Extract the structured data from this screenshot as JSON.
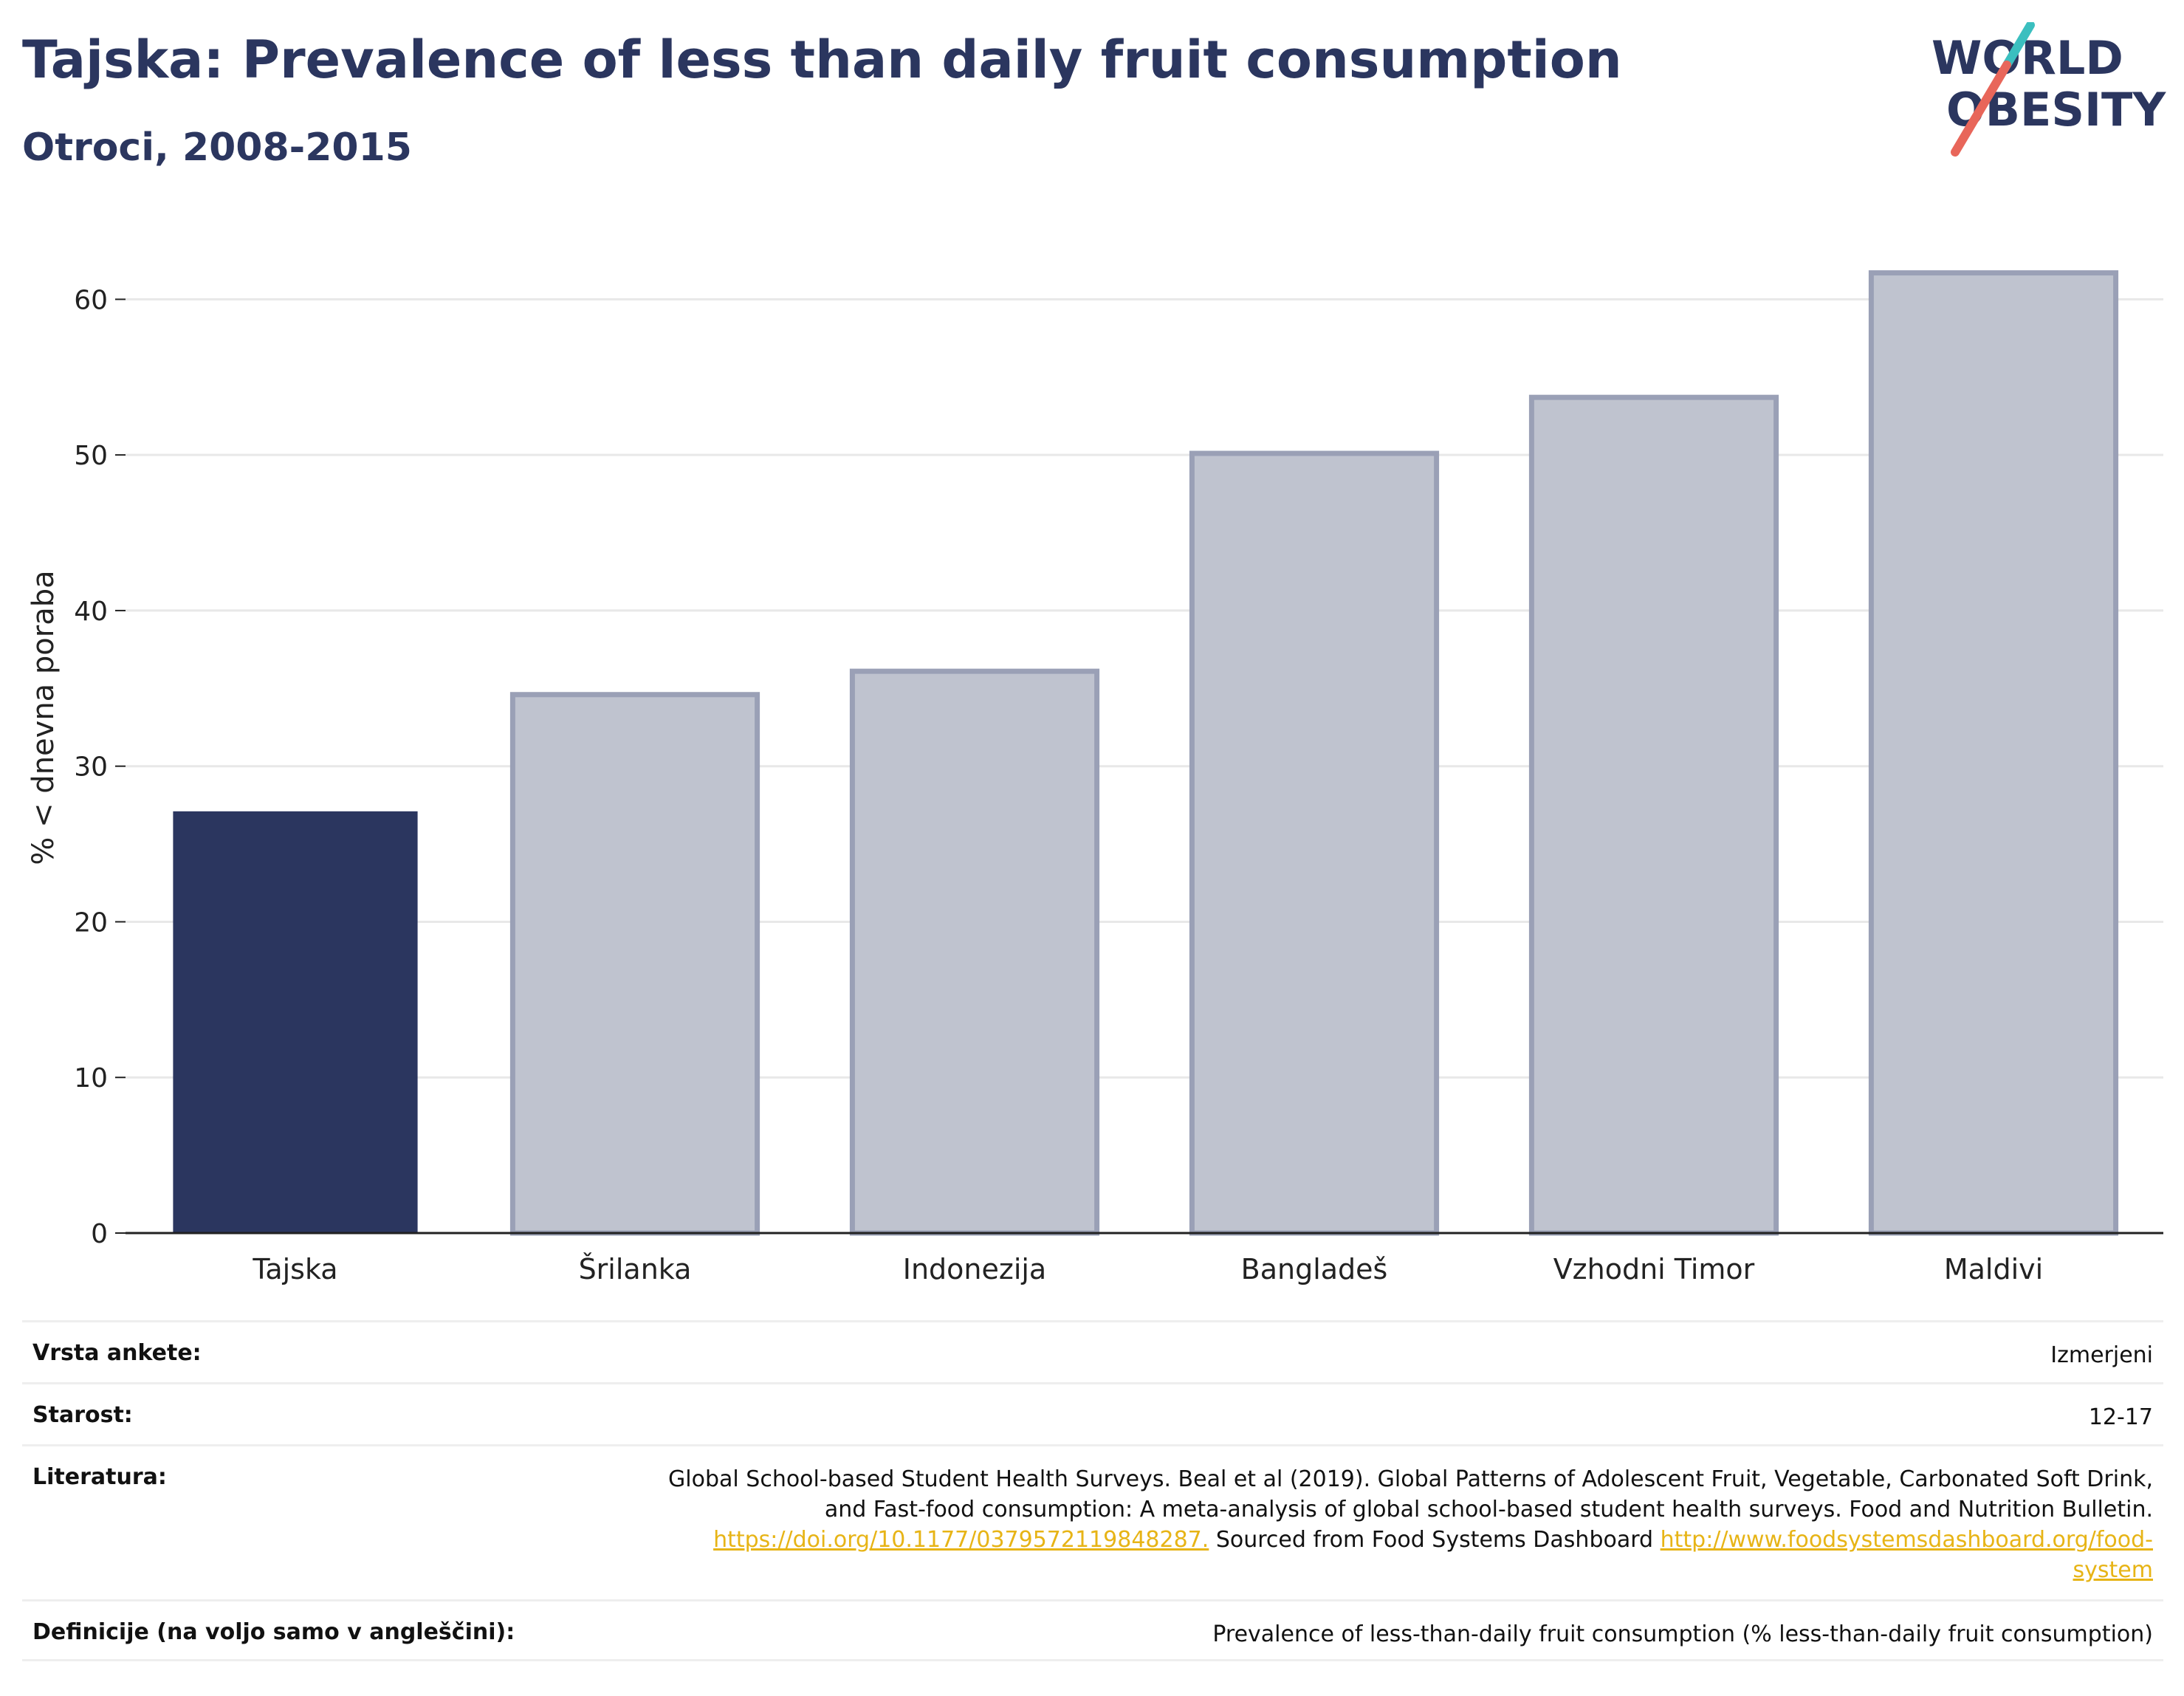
{
  "title": "Tajska: Prevalence of less than daily fruit consumption",
  "subtitle": "Otroci, 2008-2015",
  "logo": {
    "line1": "WORLD",
    "line2": "OBESITY",
    "accent_teal": "#3bbfbf",
    "accent_red": "#e8665a"
  },
  "colors": {
    "highlight": "#2b365f",
    "other_fill": "#bfc3cf",
    "other_stroke": "#9aa0b6"
  },
  "chart_data": {
    "type": "bar",
    "categories": [
      "Tajska",
      "Šrilanka",
      "Indonezija",
      "Bangladeš",
      "Vzhodni Timor",
      "Maldivi"
    ],
    "values": [
      27.1,
      34.6,
      36.1,
      50.1,
      53.7,
      61.7
    ],
    "highlight_index": 0,
    "ylabel": "% < dnevna poraba",
    "ylim": [
      0,
      65
    ],
    "yticks": [
      0,
      10,
      20,
      30,
      40,
      50,
      60
    ],
    "grid": true
  },
  "meta": {
    "survey_label": "Vrsta ankete:",
    "survey_value": "Izmerjeni",
    "age_label": "Starost:",
    "age_value": "12-17",
    "refs_label": "Literatura:",
    "refs_line1": "Global School-based Student Health Surveys. Beal et al (2019). Global Patterns of Adolescent Fruit, Vegetable, Carbonated Soft Drink,",
    "refs_line2": "and Fast-food consumption: A meta-analysis of global school-based student health surveys. Food and Nutrition Bulletin.",
    "refs_link1": "https://doi.org/10.1177/0379572119848287.",
    "refs_text2": " Sourced from Food Systems Dashboard ",
    "refs_link2a": "http://www.foodsystemsdashboard.org/food-",
    "refs_link2b": "system",
    "defs_label": "Definicije (na voljo samo v angleščini):",
    "defs_value": "Prevalence of less-than-daily fruit consumption (% less-than-daily fruit consumption)"
  }
}
